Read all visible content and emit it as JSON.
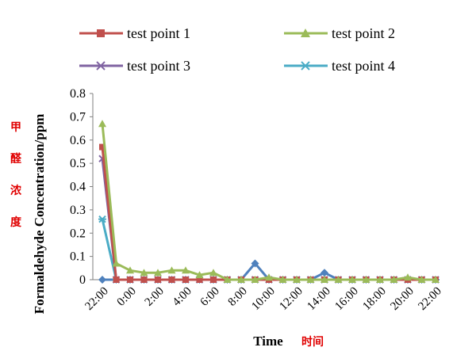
{
  "chart_data": {
    "type": "line",
    "xlabel": "Time",
    "xlabel_cn": "时间",
    "ylabel": "Formaldehyde Concentration/ppm",
    "ylabel_cn": [
      "甲",
      "醛",
      "浓",
      "度"
    ],
    "ylim": [
      0,
      0.8
    ],
    "y_ticks": [
      "0",
      "0.1",
      "0.2",
      "0.3",
      "0.4",
      "0.5",
      "0.6",
      "0.7",
      "0.8"
    ],
    "x_tick_labels": [
      "22:00",
      "0:00",
      "2:00",
      "4:00",
      "6:00",
      "8:00",
      "10:00",
      "12:00",
      "14:00",
      "16:00",
      "18:00",
      "20:00",
      "22:00"
    ],
    "legend_position": "top",
    "series": [
      {
        "name": "test point 1",
        "color": "#c0504d",
        "marker": "square",
        "values": [
          0.57,
          0,
          0,
          0,
          0,
          0,
          0,
          0,
          0,
          0,
          0,
          0,
          0,
          0,
          0,
          0,
          0,
          0,
          0,
          0,
          0,
          0,
          0,
          0,
          0
        ]
      },
      {
        "name": "test point 2",
        "color": "#9bbb59",
        "marker": "triangle",
        "values": [
          0.67,
          0.07,
          0.04,
          0.03,
          0.03,
          0.04,
          0.04,
          0.02,
          0.03,
          0,
          0,
          0,
          0.01,
          0,
          0,
          0,
          0,
          0,
          0,
          0,
          0,
          0,
          0.01,
          0,
          0
        ]
      },
      {
        "name": "test point 3",
        "color": "#8064a2",
        "marker": "x",
        "values": [
          0.52,
          0,
          0,
          0,
          0,
          0,
          0,
          0,
          0,
          0,
          0,
          0,
          0,
          0,
          0,
          0,
          0,
          0,
          0,
          0,
          0,
          0,
          0,
          0,
          0
        ]
      },
      {
        "name": "test point 4",
        "color": "#4bacc6",
        "marker": "star",
        "values": [
          0.26,
          0,
          0,
          0,
          0,
          0,
          0,
          0,
          0,
          0,
          0,
          0,
          0,
          0,
          0,
          0,
          0,
          0,
          0,
          0,
          0,
          0,
          0,
          0,
          0
        ]
      },
      {
        "name": "",
        "color": "#4f81bd",
        "marker": "diamond",
        "values": [
          0,
          0,
          0,
          0,
          0,
          0,
          0,
          0,
          0,
          0,
          0,
          0.07,
          0,
          0,
          0,
          0,
          0.03,
          0,
          0,
          0,
          0,
          0,
          0,
          0,
          0
        ]
      }
    ]
  }
}
